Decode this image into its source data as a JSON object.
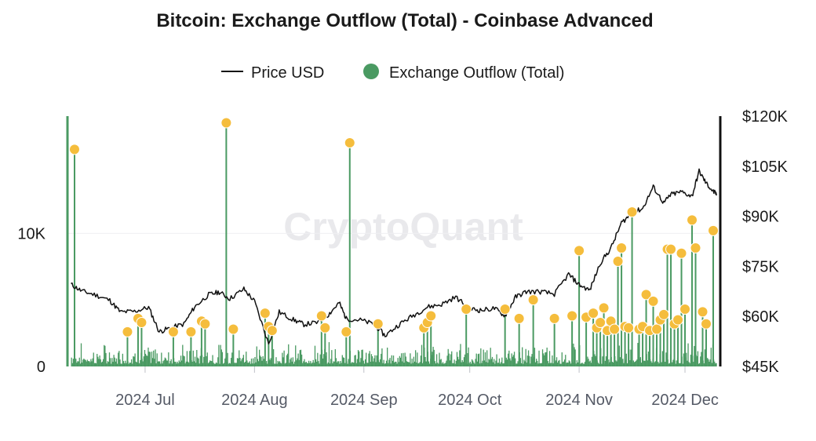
{
  "chart_data": {
    "type": "line",
    "title": "Bitcoin: Exchange Outflow (Total) - Coinbase Advanced",
    "watermark": "CryptoQuant",
    "legend": {
      "placement": "top-center",
      "items": [
        {
          "name": "Price USD",
          "marker": "line",
          "color": "#111111"
        },
        {
          "name": "Exchange Outflow (Total)",
          "marker": "dot",
          "color": "#4a9a62"
        }
      ]
    },
    "y_left": {
      "min": 0,
      "max": 18800,
      "ticks": [
        {
          "value": 0,
          "label": "0"
        },
        {
          "value": 10000,
          "label": "10K"
        }
      ],
      "axis_color": "#4a9a62"
    },
    "y_right": {
      "min": 45000,
      "max": 120000,
      "ticks": [
        {
          "value": 45000,
          "label": "$45K"
        },
        {
          "value": 60000,
          "label": "$60K"
        },
        {
          "value": 75000,
          "label": "$75K"
        },
        {
          "value": 90000,
          "label": "$90K"
        },
        {
          "value": 105000,
          "label": "$105K"
        },
        {
          "value": 120000,
          "label": "$120K"
        }
      ],
      "axis_color": "#111111"
    },
    "x_axis": {
      "start": "2024-06-09",
      "end": "2024-12-11",
      "ticks": [
        {
          "date": "2024-07-01",
          "label": "2024 Jul"
        },
        {
          "date": "2024-08-01",
          "label": "2024 Aug"
        },
        {
          "date": "2024-09-01",
          "label": "2024 Sep"
        },
        {
          "date": "2024-10-01",
          "label": "2024 Oct"
        },
        {
          "date": "2024-11-01",
          "label": "2024 Nov"
        },
        {
          "date": "2024-12-01",
          "label": "2024 Dec"
        }
      ]
    },
    "colors": {
      "outflow_bar": "#4a9a62",
      "spike_marker": "#f5bd3c",
      "price_line": "#111111",
      "gridline": "#efeff2"
    },
    "price_series": {
      "name": "Price USD",
      "points": [
        [
          "2024-06-10",
          69600
        ],
        [
          "2024-06-13",
          67600
        ],
        [
          "2024-06-17",
          66400
        ],
        [
          "2024-06-21",
          64800
        ],
        [
          "2024-06-24",
          61300
        ],
        [
          "2024-06-28",
          61500
        ],
        [
          "2024-07-02",
          62700
        ],
        [
          "2024-07-05",
          55400
        ],
        [
          "2024-07-08",
          56500
        ],
        [
          "2024-07-12",
          57700
        ],
        [
          "2024-07-15",
          62800
        ],
        [
          "2024-07-19",
          66500
        ],
        [
          "2024-07-22",
          67300
        ],
        [
          "2024-07-25",
          65300
        ],
        [
          "2024-07-29",
          68200
        ],
        [
          "2024-08-01",
          64500
        ],
        [
          "2024-08-05",
          51800
        ],
        [
          "2024-08-08",
          61300
        ],
        [
          "2024-08-12",
          59000
        ],
        [
          "2024-08-15",
          57600
        ],
        [
          "2024-08-19",
          58200
        ],
        [
          "2024-08-22",
          60600
        ],
        [
          "2024-08-25",
          64100
        ],
        [
          "2024-08-27",
          59300
        ],
        [
          "2024-08-31",
          58900
        ],
        [
          "2024-09-04",
          57600
        ],
        [
          "2024-09-07",
          54200
        ],
        [
          "2024-09-11",
          57600
        ],
        [
          "2024-09-15",
          60300
        ],
        [
          "2024-09-19",
          62800
        ],
        [
          "2024-09-23",
          63600
        ],
        [
          "2024-09-27",
          65800
        ],
        [
          "2024-10-01",
          62300
        ],
        [
          "2024-10-04",
          61800
        ],
        [
          "2024-10-08",
          62400
        ],
        [
          "2024-10-11",
          60200
        ],
        [
          "2024-10-14",
          65800
        ],
        [
          "2024-10-17",
          67400
        ],
        [
          "2024-10-21",
          67400
        ],
        [
          "2024-10-25",
          66700
        ],
        [
          "2024-10-29",
          72600
        ],
        [
          "2024-11-01",
          69500
        ],
        [
          "2024-11-04",
          67800
        ],
        [
          "2024-11-07",
          76000
        ],
        [
          "2024-11-10",
          80400
        ],
        [
          "2024-11-13",
          88000
        ],
        [
          "2024-11-16",
          91000
        ],
        [
          "2024-11-19",
          92300
        ],
        [
          "2024-11-22",
          98800
        ],
        [
          "2024-11-25",
          94000
        ],
        [
          "2024-11-27",
          96500
        ],
        [
          "2024-11-30",
          97300
        ],
        [
          "2024-12-03",
          96000
        ],
        [
          "2024-12-05",
          103500
        ],
        [
          "2024-12-07",
          99900
        ],
        [
          "2024-12-09",
          97400
        ],
        [
          "2024-12-10",
          96600
        ]
      ]
    },
    "outflow_spikes": [
      [
        "2024-06-11",
        16300
      ],
      [
        "2024-06-26",
        2600
      ],
      [
        "2024-06-29",
        3600
      ],
      [
        "2024-06-30",
        3300
      ],
      [
        "2024-07-09",
        2600
      ],
      [
        "2024-07-14",
        2600
      ],
      [
        "2024-07-17",
        3400
      ],
      [
        "2024-07-18",
        3200
      ],
      [
        "2024-07-24",
        18300
      ],
      [
        "2024-07-26",
        2800
      ],
      [
        "2024-08-04",
        4000
      ],
      [
        "2024-08-05",
        3000
      ],
      [
        "2024-08-06",
        2700
      ],
      [
        "2024-08-20",
        3800
      ],
      [
        "2024-08-21",
        2900
      ],
      [
        "2024-08-27",
        2600
      ],
      [
        "2024-08-28",
        16800
      ],
      [
        "2024-09-05",
        3200
      ],
      [
        "2024-09-18",
        2900
      ],
      [
        "2024-09-19",
        3300
      ],
      [
        "2024-09-20",
        3800
      ],
      [
        "2024-09-30",
        4300
      ],
      [
        "2024-10-11",
        4300
      ],
      [
        "2024-10-15",
        3600
      ],
      [
        "2024-10-19",
        5000
      ],
      [
        "2024-10-25",
        3600
      ],
      [
        "2024-10-30",
        3800
      ],
      [
        "2024-11-01",
        8700
      ],
      [
        "2024-11-03",
        3700
      ],
      [
        "2024-11-05",
        4000
      ],
      [
        "2024-11-06",
        2900
      ],
      [
        "2024-11-07",
        3300
      ],
      [
        "2024-11-08",
        4400
      ],
      [
        "2024-11-09",
        2700
      ],
      [
        "2024-11-10",
        3400
      ],
      [
        "2024-11-11",
        2800
      ],
      [
        "2024-11-12",
        7900
      ],
      [
        "2024-11-13",
        8900
      ],
      [
        "2024-11-14",
        3000
      ],
      [
        "2024-11-15",
        2900
      ],
      [
        "2024-11-16",
        11600
      ],
      [
        "2024-11-18",
        2800
      ],
      [
        "2024-11-19",
        3000
      ],
      [
        "2024-11-20",
        5400
      ],
      [
        "2024-11-21",
        2700
      ],
      [
        "2024-11-22",
        4900
      ],
      [
        "2024-11-23",
        2800
      ],
      [
        "2024-11-24",
        3500
      ],
      [
        "2024-11-25",
        3900
      ],
      [
        "2024-11-26",
        8800
      ],
      [
        "2024-11-27",
        8800
      ],
      [
        "2024-11-28",
        3200
      ],
      [
        "2024-11-29",
        3500
      ],
      [
        "2024-11-30",
        8500
      ],
      [
        "2024-12-01",
        4300
      ],
      [
        "2024-12-03",
        11000
      ],
      [
        "2024-12-04",
        8900
      ],
      [
        "2024-12-06",
        4100
      ],
      [
        "2024-12-07",
        3200
      ],
      [
        "2024-12-09",
        10200
      ]
    ],
    "baseline_outflow": {
      "typical_min": 200,
      "typical_max": 1500
    }
  }
}
